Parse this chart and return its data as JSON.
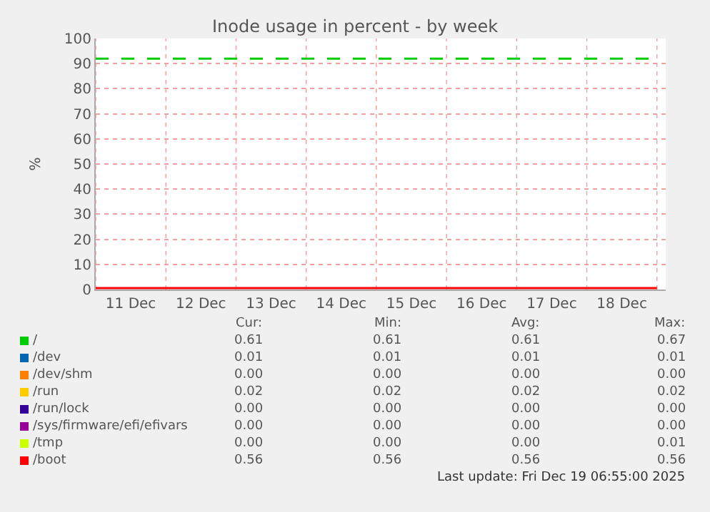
{
  "chart_data": {
    "type": "line",
    "title": "Inode usage in percent - by week",
    "ylabel": "%",
    "x": [
      "2025-12-11T00:00",
      "2025-12-12T00:00",
      "2025-12-13T00:00",
      "2025-12-14T00:00",
      "2025-12-15T00:00",
      "2025-12-16T00:00",
      "2025-12-17T00:00",
      "2025-12-18T00:00",
      "2025-12-19T00:00"
    ],
    "series": [
      {
        "name": "/",
        "color": "#00cc00",
        "values": [
          null,
          null,
          null,
          null,
          null,
          null,
          null,
          null,
          null
        ]
      },
      {
        "name": "/dev",
        "color": "#0066b3",
        "values": [
          null,
          null,
          null,
          null,
          null,
          null,
          null,
          null,
          null
        ]
      },
      {
        "name": "/dev/shm",
        "color": "#ff8000",
        "values": [
          null,
          null,
          null,
          null,
          null,
          null,
          null,
          null,
          null
        ]
      },
      {
        "name": "/run",
        "color": "#ffcc00",
        "values": [
          null,
          null,
          null,
          null,
          null,
          null,
          null,
          null,
          null
        ]
      },
      {
        "name": "/run/lock",
        "color": "#330099",
        "values": [
          null,
          null,
          null,
          null,
          null,
          null,
          null,
          null,
          null
        ]
      },
      {
        "name": "/sys/firmware/efi/efivars",
        "color": "#990099",
        "values": [
          null,
          null,
          null,
          null,
          null,
          null,
          null,
          null,
          null
        ]
      },
      {
        "name": "/tmp",
        "color": "#ccff00",
        "values": [
          null,
          null,
          null,
          null,
          null,
          null,
          null,
          null,
          null
        ]
      },
      {
        "name": "/boot",
        "color": "#ff0000",
        "values": [
          0.56,
          0.56,
          0.56,
          0.56,
          0.56,
          0.56,
          0.56,
          0.56,
          0.56
        ]
      }
    ],
    "xlim": [
      "2025-12-11T00:00",
      "2025-12-19T03:00"
    ],
    "xticks": [
      {
        "value": "2025-12-11T00:00",
        "label": null
      },
      {
        "value": "2025-12-12T00:00",
        "label": null
      },
      {
        "value": "2025-12-13T00:00",
        "label": null
      },
      {
        "value": "2025-12-14T00:00",
        "label": null
      },
      {
        "value": "2025-12-15T00:00",
        "label": null
      },
      {
        "value": "2025-12-16T00:00",
        "label": null
      },
      {
        "value": "2025-12-17T00:00",
        "label": null
      },
      {
        "value": "2025-12-18T00:00",
        "label": null
      },
      {
        "value": "2025-12-19T00:00",
        "label": null
      },
      {
        "value": "2025-12-11T12:00",
        "label": "11 Dec"
      },
      {
        "value": "2025-12-12T12:00",
        "label": "12 Dec"
      },
      {
        "value": "2025-12-13T12:00",
        "label": "13 Dec"
      },
      {
        "value": "2025-12-14T12:00",
        "label": "14 Dec"
      },
      {
        "value": "2025-12-15T12:00",
        "label": "15 Dec"
      },
      {
        "value": "2025-12-16T12:00",
        "label": "16 Dec"
      },
      {
        "value": "2025-12-17T12:00",
        "label": "17 Dec"
      },
      {
        "value": "2025-12-18T12:00",
        "label": "18 Dec"
      }
    ],
    "ylim": [
      0,
      100
    ],
    "yticks": [
      0,
      10,
      20,
      30,
      40,
      50,
      60,
      70,
      80,
      90,
      100
    ],
    "ref_lines": [
      {
        "axis": "y",
        "value": 92,
        "color": "#00cc00",
        "line_style": "dashed"
      }
    ],
    "grid": true,
    "legend": "bottom",
    "marker": "none",
    "line_style": "solid",
    "annotations": [
      "Cur:",
      "Min:",
      "Avg:",
      "Max:",
      "0.61",
      "0.61",
      "0.61",
      "0.67",
      "0.01",
      "0.01",
      "0.01",
      "0.01",
      "0.00",
      "0.00",
      "0.00",
      "0.00",
      "0.02",
      "0.02",
      "0.02",
      "0.02",
      "0.00",
      "0.00",
      "0.00",
      "0.00",
      "0.00",
      "0.00",
      "0.00",
      "0.00",
      "0.00",
      "0.00",
      "0.00",
      "0.01",
      "0.56",
      "0.56",
      "0.56",
      "0.56",
      "Last update: Fri Dec 19 06:55:00 2025"
    ]
  }
}
